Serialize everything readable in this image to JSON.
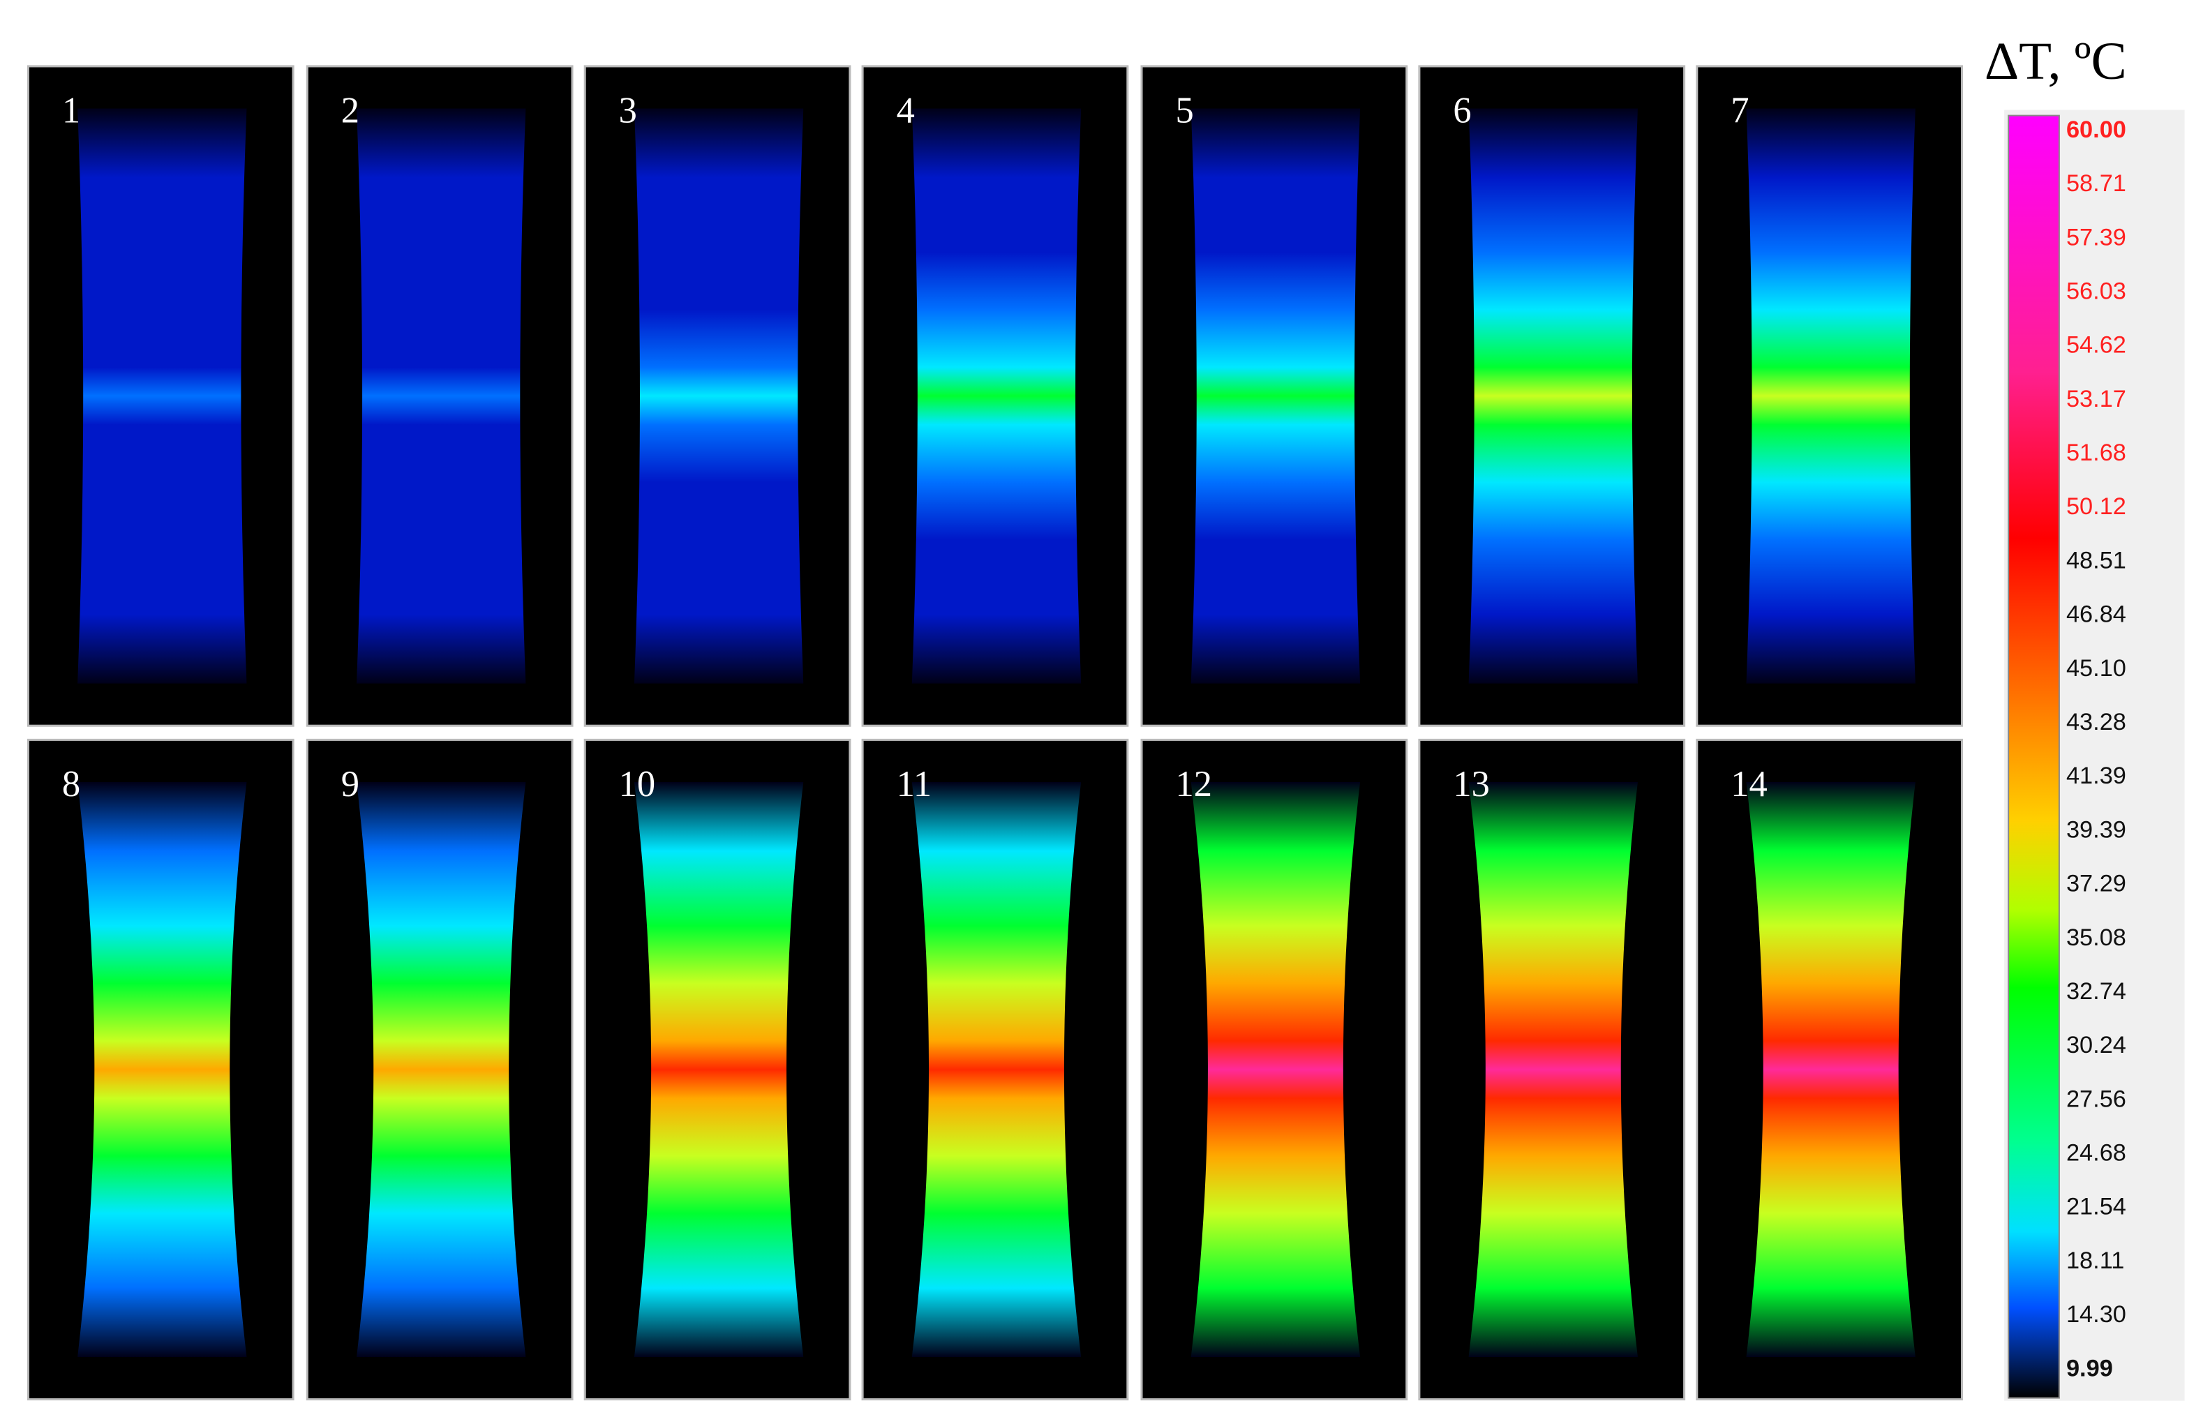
{
  "title": "ΔT, ºC",
  "panels": [
    "1",
    "2",
    "3",
    "4",
    "5",
    "6",
    "7",
    "8",
    "9",
    "10",
    "11",
    "12",
    "13",
    "14"
  ],
  "colorbar": {
    "labels": [
      "60.00",
      "58.71",
      "57.39",
      "56.03",
      "54.62",
      "53.17",
      "51.68",
      "50.12",
      "48.51",
      "46.84",
      "45.10",
      "43.28",
      "41.39",
      "39.39",
      "37.29",
      "35.08",
      "32.74",
      "30.24",
      "27.56",
      "24.68",
      "21.54",
      "18.11",
      "14.30",
      "9.99"
    ]
  }
}
